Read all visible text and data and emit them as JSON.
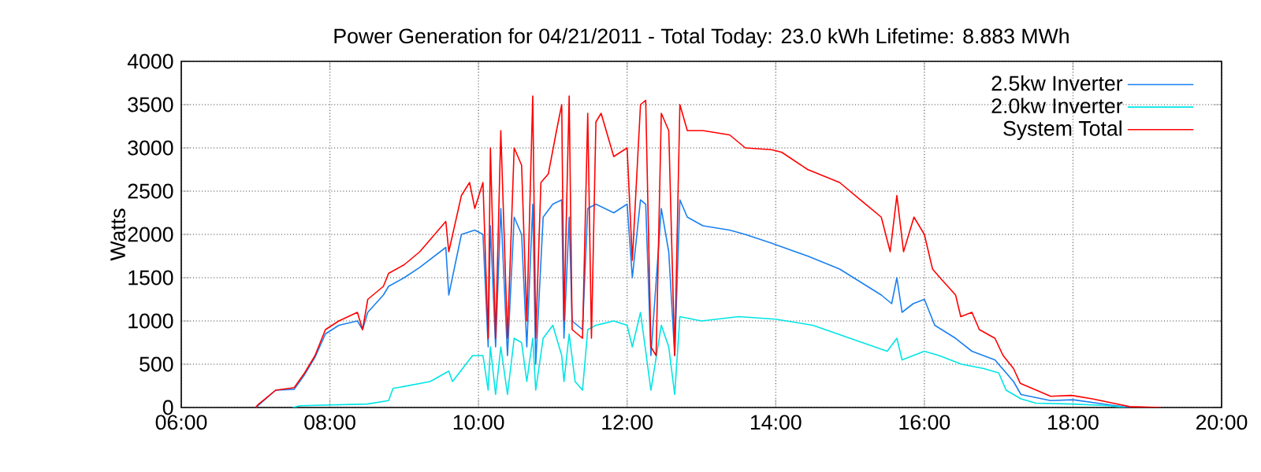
{
  "chart_data": {
    "type": "line",
    "title": "Power Generation for 04/21/2011 - Total Today: 23.0 kWh   Lifetime: 8.883 MWh",
    "ylabel": "Watts",
    "xlim": [
      6,
      20
    ],
    "ylim": [
      0,
      4000
    ],
    "xticks": [
      {
        "value": 6,
        "label": "06:00"
      },
      {
        "value": 8,
        "label": "08:00"
      },
      {
        "value": 10,
        "label": "10:00"
      },
      {
        "value": 12,
        "label": "12:00"
      },
      {
        "value": 14,
        "label": "14:00"
      },
      {
        "value": 16,
        "label": "16:00"
      },
      {
        "value": 18,
        "label": "18:00"
      },
      {
        "value": 20,
        "label": "20:00"
      }
    ],
    "yticks": [
      0,
      500,
      1000,
      1500,
      2000,
      2500,
      3000,
      3500,
      4000
    ],
    "grid": true,
    "legend": "top right",
    "series": [
      {
        "name": "2.5kw Inverter",
        "color": "#1a80f0",
        "x": [
          7.0,
          7.03,
          7.27,
          7.52,
          7.66,
          7.8,
          7.94,
          8.12,
          8.37,
          8.44,
          8.51,
          8.72,
          8.79,
          9.0,
          9.21,
          9.56,
          9.6,
          9.77,
          9.95,
          10.06,
          10.13,
          10.16,
          10.23,
          10.3,
          10.39,
          10.48,
          10.58,
          10.65,
          10.73,
          10.77,
          10.87,
          11.0,
          11.12,
          11.15,
          11.22,
          11.26,
          11.4,
          11.47,
          11.58,
          11.82,
          12.0,
          12.07,
          12.18,
          12.25,
          12.32,
          12.46,
          12.56,
          12.64,
          12.71,
          12.81,
          13.02,
          13.38,
          13.59,
          13.94,
          14.43,
          14.86,
          15.14,
          15.42,
          15.56,
          15.63,
          15.7,
          15.85,
          16.0,
          16.14,
          16.42,
          16.64,
          16.95,
          17.2,
          17.3,
          17.7,
          18.0,
          18.5,
          18.76
        ],
        "values": [
          0,
          20,
          200,
          210,
          380,
          580,
          850,
          950,
          1000,
          900,
          1100,
          1300,
          1400,
          1500,
          1620,
          1850,
          1300,
          2000,
          2050,
          2000,
          700,
          2100,
          700,
          2300,
          600,
          2200,
          2000,
          700,
          2350,
          500,
          2200,
          2350,
          2400,
          800,
          2200,
          1000,
          900,
          2300,
          2350,
          2250,
          2350,
          1500,
          2400,
          2350,
          600,
          2300,
          1800,
          600,
          2400,
          2200,
          2100,
          2050,
          2000,
          1900,
          1750,
          1600,
          1450,
          1300,
          1200,
          1500,
          1100,
          1200,
          1250,
          950,
          800,
          650,
          550,
          300,
          150,
          80,
          90,
          30,
          0
        ]
      },
      {
        "name": "2.0kw Inverter",
        "color": "#00e5e5",
        "x": [
          7.5,
          7.6,
          8.5,
          8.79,
          8.85,
          9.35,
          9.6,
          9.65,
          9.92,
          10.06,
          10.13,
          10.16,
          10.23,
          10.3,
          10.39,
          10.48,
          10.58,
          10.65,
          10.73,
          10.77,
          10.87,
          11.0,
          11.12,
          11.15,
          11.22,
          11.3,
          11.4,
          11.47,
          11.58,
          11.82,
          12.0,
          12.07,
          12.18,
          12.32,
          12.46,
          12.56,
          12.64,
          12.71,
          13.0,
          13.5,
          14.0,
          14.5,
          15.0,
          15.5,
          15.63,
          15.7,
          16.0,
          16.2,
          16.5,
          16.8,
          17.0,
          17.1,
          17.3,
          17.5,
          18.0,
          18.5,
          18.7
        ],
        "values": [
          0,
          20,
          40,
          80,
          220,
          300,
          420,
          300,
          600,
          600,
          200,
          700,
          150,
          700,
          150,
          800,
          750,
          300,
          800,
          200,
          800,
          950,
          600,
          300,
          850,
          300,
          200,
          900,
          950,
          1000,
          950,
          700,
          1100,
          200,
          950,
          700,
          150,
          1050,
          1000,
          1050,
          1020,
          950,
          800,
          650,
          800,
          550,
          650,
          600,
          500,
          450,
          400,
          200,
          100,
          50,
          40,
          20,
          0
        ]
      },
      {
        "name": "System Total",
        "color": "#ff0000",
        "x": [
          7.0,
          7.03,
          7.27,
          7.52,
          7.66,
          7.8,
          7.94,
          8.12,
          8.37,
          8.44,
          8.51,
          8.72,
          8.79,
          9.0,
          9.21,
          9.56,
          9.6,
          9.77,
          9.88,
          9.95,
          10.06,
          10.13,
          10.16,
          10.23,
          10.3,
          10.39,
          10.48,
          10.58,
          10.65,
          10.73,
          10.77,
          10.84,
          10.94,
          11.05,
          11.12,
          11.15,
          11.22,
          11.26,
          11.4,
          11.47,
          11.52,
          11.58,
          11.65,
          11.82,
          12.0,
          12.07,
          12.18,
          12.25,
          12.32,
          12.39,
          12.46,
          12.56,
          12.64,
          12.71,
          12.81,
          13.02,
          13.38,
          13.59,
          13.94,
          14.08,
          14.43,
          14.86,
          15.14,
          15.42,
          15.54,
          15.63,
          15.72,
          15.86,
          16.0,
          16.11,
          16.21,
          16.42,
          16.49,
          16.64,
          16.74,
          16.95,
          17.06,
          17.2,
          17.29,
          17.7,
          17.98,
          18.26,
          18.54,
          18.76,
          19.18
        ],
        "values": [
          0,
          30,
          200,
          230,
          400,
          600,
          900,
          1000,
          1100,
          900,
          1250,
          1400,
          1550,
          1650,
          1800,
          2150,
          1800,
          2450,
          2600,
          2300,
          2600,
          800,
          3000,
          800,
          3200,
          800,
          3000,
          2800,
          1000,
          3600,
          800,
          2600,
          2700,
          3200,
          3500,
          1000,
          3600,
          900,
          800,
          3400,
          800,
          3300,
          3400,
          2900,
          3000,
          1700,
          3500,
          3550,
          700,
          600,
          3400,
          3200,
          600,
          3500,
          3200,
          3200,
          3150,
          3000,
          2980,
          2950,
          2750,
          2600,
          2400,
          2200,
          1800,
          2450,
          1800,
          2200,
          2000,
          1600,
          1500,
          1300,
          1050,
          1100,
          900,
          800,
          600,
          450,
          280,
          130,
          140,
          100,
          50,
          10,
          0
        ]
      }
    ]
  }
}
